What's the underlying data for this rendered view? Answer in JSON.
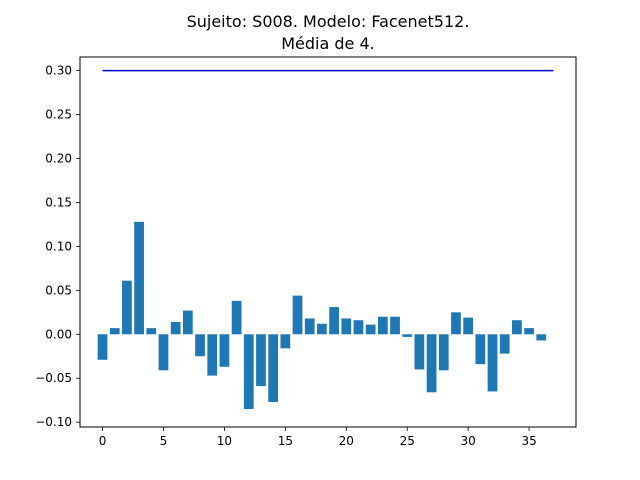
{
  "chart_data": {
    "type": "bar",
    "title_line1": "Sujeito: S008. Modelo: Facenet512.",
    "title_line2": "Média de 4.",
    "xlabel": "",
    "ylabel": "",
    "xlim": [
      -1.85,
      38.85
    ],
    "ylim": [
      -0.1055,
      0.3155
    ],
    "x_ticks": [
      0,
      5,
      10,
      15,
      20,
      25,
      30,
      35
    ],
    "y_ticks": [
      -0.1,
      -0.05,
      0.0,
      0.05,
      0.1,
      0.15,
      0.2,
      0.25,
      0.3
    ],
    "y_tick_labels": [
      "−0.10",
      "−0.05",
      "0.00",
      "0.05",
      "0.10",
      "0.15",
      "0.20",
      "0.25",
      "0.30"
    ],
    "bar_color": "#1f77b4",
    "x": [
      0,
      1,
      2,
      3,
      4,
      5,
      6,
      7,
      8,
      9,
      10,
      11,
      12,
      13,
      14,
      15,
      16,
      17,
      18,
      19,
      20,
      21,
      22,
      23,
      24,
      25,
      26,
      27,
      28,
      29,
      30,
      31,
      32,
      33,
      34,
      35,
      36,
      37
    ],
    "values": [
      -0.029,
      0.007,
      0.061,
      0.128,
      0.007,
      -0.041,
      0.014,
      0.027,
      -0.025,
      -0.047,
      -0.037,
      0.038,
      -0.085,
      -0.059,
      -0.077,
      -0.016,
      0.044,
      0.018,
      0.012,
      0.031,
      0.018,
      0.016,
      0.011,
      0.02,
      0.02,
      -0.003,
      -0.04,
      -0.066,
      -0.041,
      0.025,
      0.019,
      -0.034,
      -0.065,
      -0.022,
      0.016,
      0.007,
      -0.007,
      0.0
    ],
    "threshold": {
      "value": 0.3,
      "x_start": 0,
      "x_end": 37,
      "color": "#0000cd"
    }
  }
}
